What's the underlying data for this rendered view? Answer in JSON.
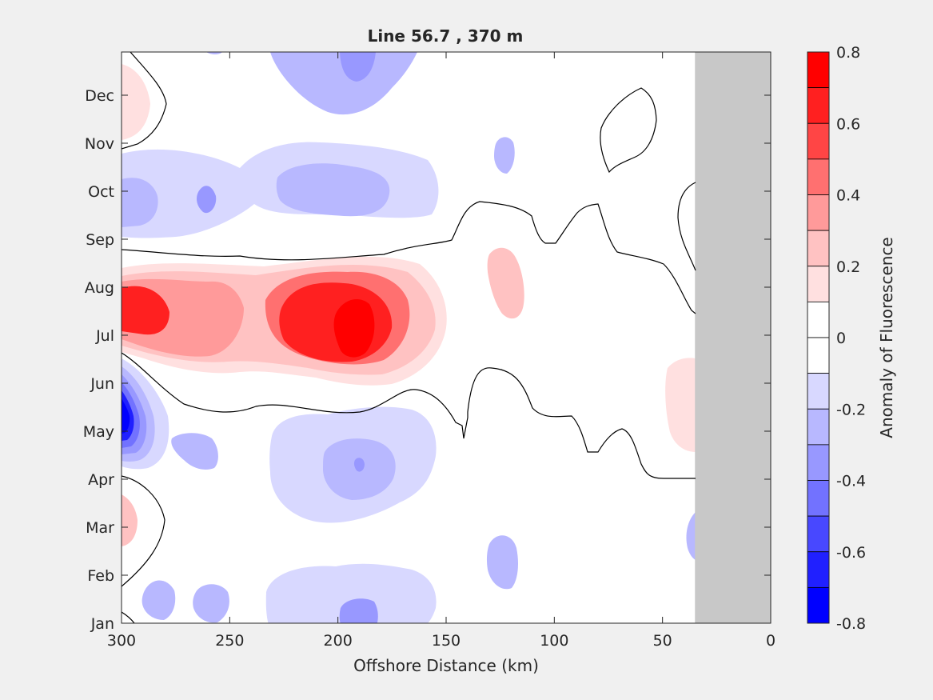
{
  "chart_data": {
    "type": "contour",
    "title": "Line 56.7 , 370 m",
    "xlabel": "Offshore Distance (km)",
    "ylabel": "",
    "xlim": [
      300,
      0
    ],
    "x_reversed": true,
    "x_ticks": [
      300,
      250,
      200,
      150,
      100,
      50,
      0
    ],
    "y_ticks": [
      "Jan",
      "Feb",
      "Mar",
      "Apr",
      "May",
      "Jun",
      "Jul",
      "Aug",
      "Sep",
      "Oct",
      "Nov",
      "Dec"
    ],
    "y_tick_positions": [
      0,
      1,
      2,
      3,
      4,
      5,
      6,
      7,
      8,
      9,
      10,
      11
    ],
    "ylim": [
      0,
      11.9
    ],
    "no_data_x_range": [
      35,
      0
    ],
    "colorbar": {
      "label": "Anomaly of Fluorescence",
      "clim": [
        -0.8,
        0.8
      ],
      "ticks": [
        0.8,
        0.6,
        0.4,
        0.2,
        0,
        -0.2,
        -0.4,
        -0.6,
        -0.8
      ],
      "tick_labels": [
        "0.8",
        "0.6",
        "0.4",
        "0.2",
        "0",
        "-0.2",
        "-0.4",
        "-0.6",
        "-0.8"
      ],
      "colors": [
        "#ff0000",
        "#ff2020",
        "#ff4545",
        "#ff7070",
        "#ff9a9a",
        "#ffc2c2",
        "#ffe0e0",
        "#ffffff",
        "#ffffff",
        "#d8d8ff",
        "#b8b8ff",
        "#9898ff",
        "#7272ff",
        "#4848ff",
        "#2020ff",
        "#0000ff"
      ]
    },
    "zero_contour": "black",
    "features": [
      {
        "name": "summer-positive-band",
        "x_center": 190,
        "y_center": 6.0,
        "peak": 0.8
      },
      {
        "name": "coastal-may-negative",
        "x_center": 298,
        "y_center": 4.45,
        "peak": -0.75
      },
      {
        "name": "october-negative-band",
        "x_center": 200,
        "y_center": 9.05,
        "peak": -0.35
      },
      {
        "name": "april-negative",
        "x_center": 190,
        "y_center": 3.65,
        "peak": -0.3
      },
      {
        "name": "offshore-aug-positive",
        "x_center": 123,
        "y_center": 6.85,
        "peak": 0.3
      },
      {
        "name": "march-coastal-positive",
        "x_center": 298,
        "y_center": 2.2,
        "peak": 0.3
      },
      {
        "name": "december-coastal-positive",
        "x_center": 298,
        "y_center": 10.95,
        "peak": 0.2
      },
      {
        "name": "january-negative",
        "x_center": 190,
        "y_center": 0.4,
        "peak": -0.3
      }
    ]
  }
}
